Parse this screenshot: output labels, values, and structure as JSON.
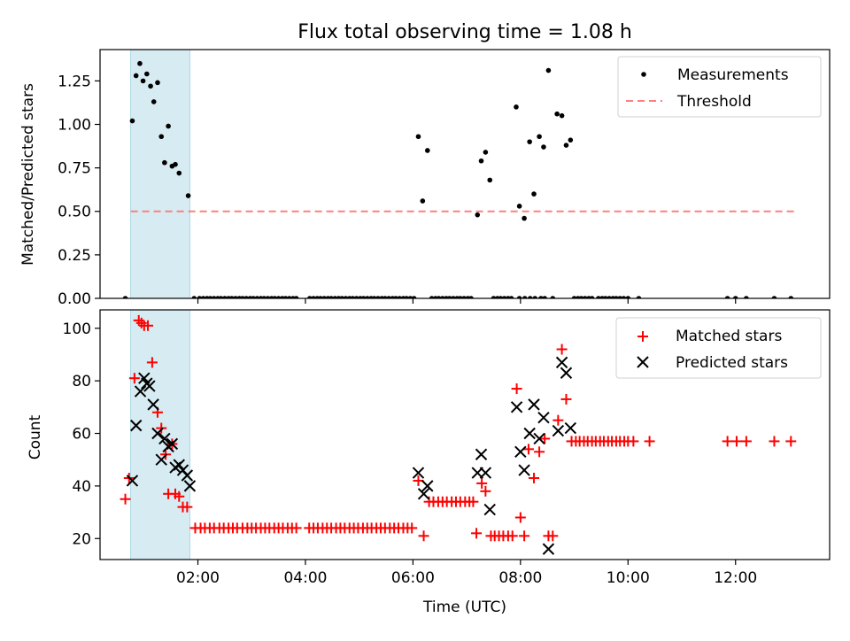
{
  "figure_title": "Flux total observing time = 1.08 h",
  "x_tick_labels": [
    "02:00",
    "04:00",
    "06:00",
    "08:00",
    "10:00",
    "12:00"
  ],
  "x_tick_hours": [
    2,
    4,
    6,
    8,
    10,
    12
  ],
  "x_label": "Time (UTC)",
  "colors": {
    "measurement": "#000000",
    "threshold": "#ff7f7f",
    "matched": "#ff0000",
    "predicted": "#000000",
    "span": "#add8e6"
  },
  "chart_data": [
    {
      "type": "scatter",
      "panel": "top",
      "ylabel": "Matched/Predicted stars",
      "xlabel": "",
      "xlim_hours": [
        0.18,
        13.75
      ],
      "ylim": [
        0,
        1.43
      ],
      "y_tick_labels": [
        "0.00",
        "0.25",
        "0.50",
        "0.75",
        "1.00",
        "1.25"
      ],
      "y_ticks": [
        0,
        0.25,
        0.5,
        0.75,
        1.0,
        1.25
      ],
      "legend": {
        "placement": "top-right",
        "entries": [
          "Measurements",
          "Threshold"
        ]
      },
      "shaded_span_hours": [
        0.75,
        1.85
      ],
      "threshold": {
        "y": 0.5,
        "x_hours": [
          0.75,
          13.1
        ]
      },
      "measurements": [
        [
          0.65,
          0.0
        ],
        [
          0.78,
          1.02
        ],
        [
          0.85,
          1.28
        ],
        [
          0.92,
          1.35
        ],
        [
          0.98,
          1.25
        ],
        [
          1.05,
          1.29
        ],
        [
          1.12,
          1.22
        ],
        [
          1.18,
          1.13
        ],
        [
          1.25,
          1.24
        ],
        [
          1.32,
          0.93
        ],
        [
          1.38,
          0.78
        ],
        [
          1.45,
          0.99
        ],
        [
          1.52,
          0.76
        ],
        [
          1.58,
          0.77
        ],
        [
          1.65,
          0.72
        ],
        [
          1.82,
          0.59
        ],
        [
          1.93,
          0.0
        ],
        [
          2.03,
          0.0
        ],
        [
          2.1,
          0.0
        ],
        [
          2.17,
          0.0
        ],
        [
          2.23,
          0.0
        ],
        [
          2.3,
          0.0
        ],
        [
          2.37,
          0.0
        ],
        [
          2.43,
          0.0
        ],
        [
          2.5,
          0.0
        ],
        [
          2.57,
          0.0
        ],
        [
          2.63,
          0.0
        ],
        [
          2.7,
          0.0
        ],
        [
          2.77,
          0.0
        ],
        [
          2.83,
          0.0
        ],
        [
          2.9,
          0.0
        ],
        [
          2.97,
          0.0
        ],
        [
          3.03,
          0.0
        ],
        [
          3.1,
          0.0
        ],
        [
          3.17,
          0.0
        ],
        [
          3.23,
          0.0
        ],
        [
          3.3,
          0.0
        ],
        [
          3.37,
          0.0
        ],
        [
          3.43,
          0.0
        ],
        [
          3.5,
          0.0
        ],
        [
          3.57,
          0.0
        ],
        [
          3.63,
          0.0
        ],
        [
          3.7,
          0.0
        ],
        [
          3.77,
          0.0
        ],
        [
          3.83,
          0.0
        ],
        [
          4.08,
          0.0
        ],
        [
          4.15,
          0.0
        ],
        [
          4.22,
          0.0
        ],
        [
          4.28,
          0.0
        ],
        [
          4.35,
          0.0
        ],
        [
          4.42,
          0.0
        ],
        [
          4.48,
          0.0
        ],
        [
          4.55,
          0.0
        ],
        [
          4.62,
          0.0
        ],
        [
          4.68,
          0.0
        ],
        [
          4.75,
          0.0
        ],
        [
          4.82,
          0.0
        ],
        [
          4.88,
          0.0
        ],
        [
          4.95,
          0.0
        ],
        [
          5.02,
          0.0
        ],
        [
          5.08,
          0.0
        ],
        [
          5.15,
          0.0
        ],
        [
          5.22,
          0.0
        ],
        [
          5.28,
          0.0
        ],
        [
          5.35,
          0.0
        ],
        [
          5.42,
          0.0
        ],
        [
          5.48,
          0.0
        ],
        [
          5.55,
          0.0
        ],
        [
          5.62,
          0.0
        ],
        [
          5.68,
          0.0
        ],
        [
          5.75,
          0.0
        ],
        [
          5.82,
          0.0
        ],
        [
          5.88,
          0.0
        ],
        [
          5.95,
          0.0
        ],
        [
          6.02,
          0.0
        ],
        [
          6.1,
          0.93
        ],
        [
          6.18,
          0.56
        ],
        [
          6.27,
          0.85
        ],
        [
          6.35,
          0.0
        ],
        [
          6.42,
          0.0
        ],
        [
          6.48,
          0.0
        ],
        [
          6.55,
          0.0
        ],
        [
          6.62,
          0.0
        ],
        [
          6.68,
          0.0
        ],
        [
          6.75,
          0.0
        ],
        [
          6.82,
          0.0
        ],
        [
          6.88,
          0.0
        ],
        [
          6.95,
          0.0
        ],
        [
          7.02,
          0.0
        ],
        [
          7.08,
          0.0
        ],
        [
          7.2,
          0.48
        ],
        [
          7.27,
          0.79
        ],
        [
          7.35,
          0.84
        ],
        [
          7.43,
          0.68
        ],
        [
          7.5,
          0.0
        ],
        [
          7.57,
          0.0
        ],
        [
          7.63,
          0.0
        ],
        [
          7.7,
          0.0
        ],
        [
          7.77,
          0.0
        ],
        [
          7.83,
          0.0
        ],
        [
          7.92,
          1.1
        ],
        [
          7.98,
          0.53
        ],
        [
          8.07,
          0.46
        ],
        [
          8.17,
          0.9
        ],
        [
          8.25,
          0.6
        ],
        [
          8.35,
          0.93
        ],
        [
          8.43,
          0.87
        ],
        [
          8.52,
          1.31
        ],
        [
          8.68,
          1.06
        ],
        [
          8.77,
          1.05
        ],
        [
          8.85,
          0.88
        ],
        [
          8.93,
          0.91
        ],
        [
          7.98,
          0.0
        ],
        [
          8.08,
          0.0
        ],
        [
          8.18,
          0.0
        ],
        [
          8.27,
          0.0
        ],
        [
          8.38,
          0.0
        ],
        [
          8.45,
          0.0
        ],
        [
          8.6,
          0.0
        ],
        [
          9.0,
          0.0
        ],
        [
          9.07,
          0.0
        ],
        [
          9.13,
          0.0
        ],
        [
          9.2,
          0.0
        ],
        [
          9.27,
          0.0
        ],
        [
          9.33,
          0.0
        ],
        [
          9.45,
          0.0
        ],
        [
          9.52,
          0.0
        ],
        [
          9.58,
          0.0
        ],
        [
          9.65,
          0.0
        ],
        [
          9.72,
          0.0
        ],
        [
          9.78,
          0.0
        ],
        [
          9.85,
          0.0
        ],
        [
          9.92,
          0.0
        ],
        [
          10.0,
          0.0
        ],
        [
          10.2,
          0.0
        ],
        [
          11.85,
          0.0
        ],
        [
          12.0,
          0.0
        ],
        [
          12.2,
          0.0
        ],
        [
          12.72,
          0.0
        ],
        [
          13.03,
          0.0
        ]
      ]
    },
    {
      "type": "scatter",
      "panel": "bottom",
      "ylabel": "Count",
      "xlabel": "Time (UTC)",
      "xlim_hours": [
        0.18,
        13.75
      ],
      "ylim": [
        12,
        107
      ],
      "y_tick_labels": [
        "20",
        "40",
        "60",
        "80",
        "100"
      ],
      "y_ticks": [
        20,
        40,
        60,
        80,
        100
      ],
      "legend": {
        "placement": "top-right",
        "entries": [
          "Matched stars",
          "Predicted stars"
        ]
      },
      "shaded_span_hours": [
        0.75,
        1.85
      ],
      "series": [
        {
          "name": "Matched stars",
          "marker": "plus",
          "points": [
            [
              0.65,
              35
            ],
            [
              0.72,
              43
            ],
            [
              0.82,
              81
            ],
            [
              0.9,
              103
            ],
            [
              0.95,
              102
            ],
            [
              1.0,
              101
            ],
            [
              1.07,
              101
            ],
            [
              1.15,
              87
            ],
            [
              1.25,
              68
            ],
            [
              1.32,
              62
            ],
            [
              1.4,
              52
            ],
            [
              1.45,
              37
            ],
            [
              1.52,
              56
            ],
            [
              1.58,
              37
            ],
            [
              1.65,
              36
            ],
            [
              1.72,
              32
            ],
            [
              1.8,
              32
            ],
            [
              1.95,
              24
            ],
            [
              2.05,
              24
            ],
            [
              2.13,
              24
            ],
            [
              2.22,
              24
            ],
            [
              2.3,
              24
            ],
            [
              2.4,
              24
            ],
            [
              2.48,
              24
            ],
            [
              2.57,
              24
            ],
            [
              2.65,
              24
            ],
            [
              2.73,
              24
            ],
            [
              2.83,
              24
            ],
            [
              2.92,
              24
            ],
            [
              3.0,
              24
            ],
            [
              3.08,
              24
            ],
            [
              3.17,
              24
            ],
            [
              3.25,
              24
            ],
            [
              3.33,
              24
            ],
            [
              3.42,
              24
            ],
            [
              3.5,
              24
            ],
            [
              3.58,
              24
            ],
            [
              3.67,
              24
            ],
            [
              3.75,
              24
            ],
            [
              3.83,
              24
            ],
            [
              4.07,
              24
            ],
            [
              4.15,
              24
            ],
            [
              4.23,
              24
            ],
            [
              4.32,
              24
            ],
            [
              4.4,
              24
            ],
            [
              4.48,
              24
            ],
            [
              4.57,
              24
            ],
            [
              4.65,
              24
            ],
            [
              4.73,
              24
            ],
            [
              4.82,
              24
            ],
            [
              4.9,
              24
            ],
            [
              4.98,
              24
            ],
            [
              5.07,
              24
            ],
            [
              5.15,
              24
            ],
            [
              5.23,
              24
            ],
            [
              5.32,
              24
            ],
            [
              5.4,
              24
            ],
            [
              5.48,
              24
            ],
            [
              5.57,
              24
            ],
            [
              5.65,
              24
            ],
            [
              5.73,
              24
            ],
            [
              5.82,
              24
            ],
            [
              5.9,
              24
            ],
            [
              5.98,
              24
            ],
            [
              6.1,
              42
            ],
            [
              6.2,
              21
            ],
            [
              6.3,
              34
            ],
            [
              6.38,
              34
            ],
            [
              6.47,
              34
            ],
            [
              6.55,
              34
            ],
            [
              6.63,
              34
            ],
            [
              6.72,
              34
            ],
            [
              6.8,
              34
            ],
            [
              6.88,
              34
            ],
            [
              6.97,
              34
            ],
            [
              7.05,
              34
            ],
            [
              7.12,
              34
            ],
            [
              7.18,
              22
            ],
            [
              7.28,
              41
            ],
            [
              7.35,
              38
            ],
            [
              7.45,
              21
            ],
            [
              7.52,
              21
            ],
            [
              7.6,
              21
            ],
            [
              7.68,
              21
            ],
            [
              7.77,
              21
            ],
            [
              7.85,
              21
            ],
            [
              7.93,
              77
            ],
            [
              8.0,
              28
            ],
            [
              8.07,
              21
            ],
            [
              8.15,
              54
            ],
            [
              8.25,
              43
            ],
            [
              8.35,
              53
            ],
            [
              8.45,
              58
            ],
            [
              8.52,
              21
            ],
            [
              8.6,
              21
            ],
            [
              8.7,
              65
            ],
            [
              8.77,
              92
            ],
            [
              8.85,
              73
            ],
            [
              8.95,
              57
            ],
            [
              9.03,
              57
            ],
            [
              9.1,
              57
            ],
            [
              9.18,
              57
            ],
            [
              9.25,
              57
            ],
            [
              9.33,
              57
            ],
            [
              9.4,
              57
            ],
            [
              9.48,
              57
            ],
            [
              9.55,
              57
            ],
            [
              9.63,
              57
            ],
            [
              9.7,
              57
            ],
            [
              9.78,
              57
            ],
            [
              9.85,
              57
            ],
            [
              9.93,
              57
            ],
            [
              10.0,
              57
            ],
            [
              10.1,
              57
            ],
            [
              10.4,
              57
            ],
            [
              11.85,
              57
            ],
            [
              12.02,
              57
            ],
            [
              12.2,
              57
            ],
            [
              12.72,
              57
            ],
            [
              13.03,
              57
            ]
          ]
        },
        {
          "name": "Predicted stars",
          "marker": "x",
          "points": [
            [
              0.78,
              42
            ],
            [
              0.85,
              63
            ],
            [
              0.93,
              76
            ],
            [
              1.0,
              81
            ],
            [
              1.05,
              79
            ],
            [
              1.1,
              78
            ],
            [
              1.17,
              71
            ],
            [
              1.25,
              60
            ],
            [
              1.32,
              50
            ],
            [
              1.38,
              58
            ],
            [
              1.45,
              55
            ],
            [
              1.52,
              56
            ],
            [
              1.58,
              47
            ],
            [
              1.65,
              48
            ],
            [
              1.72,
              46
            ],
            [
              1.8,
              44
            ],
            [
              1.85,
              40
            ],
            [
              6.1,
              45
            ],
            [
              6.2,
              37
            ],
            [
              6.27,
              40
            ],
            [
              7.2,
              45
            ],
            [
              7.27,
              52
            ],
            [
              7.35,
              45
            ],
            [
              7.43,
              31
            ],
            [
              7.93,
              70
            ],
            [
              8.0,
              53
            ],
            [
              8.07,
              46
            ],
            [
              8.17,
              60
            ],
            [
              8.25,
              71
            ],
            [
              8.35,
              58
            ],
            [
              8.43,
              66
            ],
            [
              8.52,
              16
            ],
            [
              8.7,
              61
            ],
            [
              8.77,
              87
            ],
            [
              8.85,
              83
            ],
            [
              8.93,
              62
            ]
          ]
        }
      ]
    }
  ]
}
